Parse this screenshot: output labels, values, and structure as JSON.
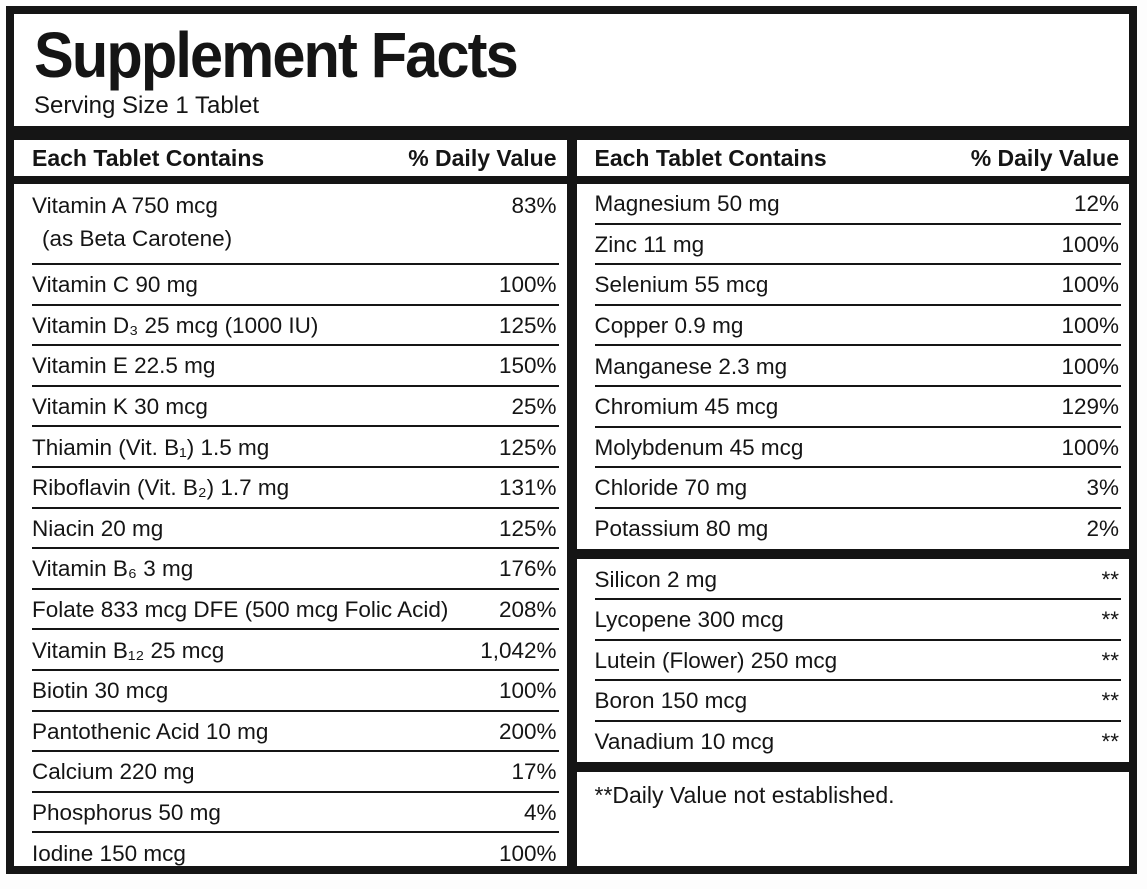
{
  "label": {
    "title": "Supplement Facts",
    "serving_size": "Serving Size 1 Tablet",
    "footnote": "**Daily Value not established.",
    "colors": {
      "ink": "#151515",
      "background": "#ffffff"
    },
    "left": {
      "header": {
        "contains": "Each Tablet Contains",
        "daily_value": "% Daily Value"
      },
      "rows": [
        {
          "name": "Vitamin A 750 mcg",
          "note": "(as Beta Carotene)",
          "dv": "83%"
        },
        {
          "name": "Vitamin C 90 mg",
          "dv": "100%"
        },
        {
          "name": "Vitamin D₃ 25 mcg (1000 IU)",
          "dv": "125%"
        },
        {
          "name": "Vitamin E 22.5 mg",
          "dv": "150%"
        },
        {
          "name": "Vitamin K 30 mcg",
          "dv": "25%"
        },
        {
          "name": "Thiamin (Vit. B₁) 1.5 mg",
          "dv": "125%"
        },
        {
          "name": "Riboflavin (Vit. B₂) 1.7 mg",
          "dv": "131%"
        },
        {
          "name": "Niacin 20 mg",
          "dv": "125%"
        },
        {
          "name": "Vitamin B₆ 3 mg",
          "dv": "176%"
        },
        {
          "name": "Folate 833 mcg DFE (500 mcg Folic Acid)",
          "dv": "208%"
        },
        {
          "name": "Vitamin B₁₂ 25 mcg",
          "dv": "1,042%"
        },
        {
          "name": "Biotin 30 mcg",
          "dv": "100%"
        },
        {
          "name": "Pantothenic Acid 10 mg",
          "dv": "200%"
        },
        {
          "name": "Calcium 220 mg",
          "dv": "17%"
        },
        {
          "name": "Phosphorus 50 mg",
          "dv": "4%"
        },
        {
          "name": "Iodine 150 mcg",
          "dv": "100%"
        }
      ]
    },
    "right": {
      "header": {
        "contains": "Each Tablet Contains",
        "daily_value": "% Daily Value"
      },
      "rows_dv": [
        {
          "name": "Magnesium 50 mg",
          "dv": "12%"
        },
        {
          "name": "Zinc 11 mg",
          "dv": "100%"
        },
        {
          "name": "Selenium 55 mcg",
          "dv": "100%"
        },
        {
          "name": "Copper 0.9 mg",
          "dv": "100%"
        },
        {
          "name": "Manganese 2.3 mg",
          "dv": "100%"
        },
        {
          "name": "Chromium 45 mcg",
          "dv": "129%"
        },
        {
          "name": "Molybdenum 45 mcg",
          "dv": "100%"
        },
        {
          "name": "Chloride 70 mg",
          "dv": "3%"
        },
        {
          "name": "Potassium 80 mg",
          "dv": "2%"
        }
      ],
      "rows_no_dv": [
        {
          "name": "Silicon 2 mg",
          "dv": "**"
        },
        {
          "name": "Lycopene 300 mcg",
          "dv": "**"
        },
        {
          "name": "Lutein (Flower) 250 mcg",
          "dv": "**"
        },
        {
          "name": "Boron 150 mcg",
          "dv": "**"
        },
        {
          "name": "Vanadium 10 mcg",
          "dv": "**"
        }
      ]
    }
  }
}
